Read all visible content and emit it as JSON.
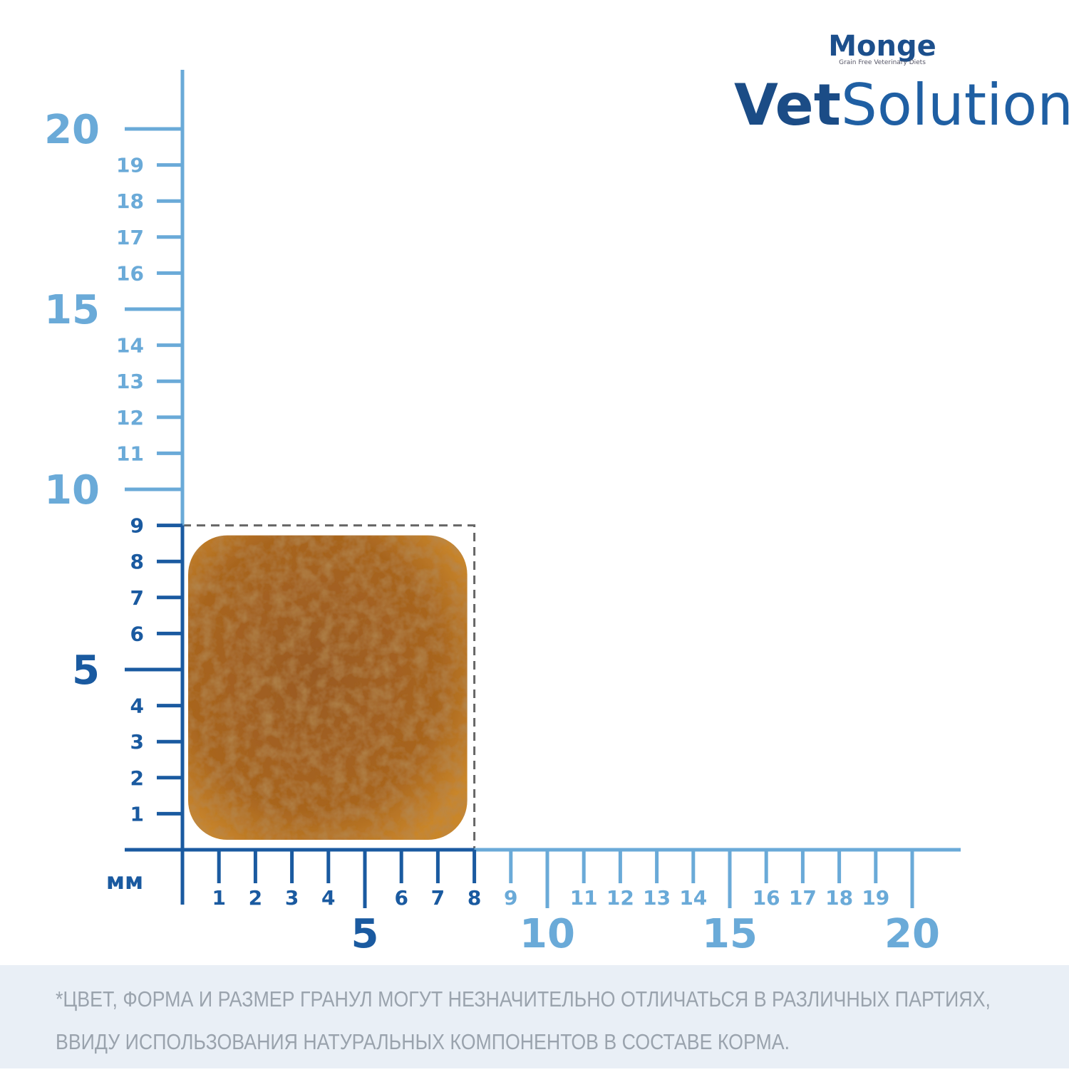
{
  "brand": {
    "name": "Monge",
    "tagline": "Grain Free Veterinary Diets",
    "product": [
      "Vet",
      "Solution"
    ]
  },
  "ruler": {
    "unit": "мм",
    "x_ticks": [
      1,
      2,
      3,
      4,
      5,
      6,
      7,
      8,
      9,
      10,
      11,
      12,
      13,
      14,
      15,
      16,
      17,
      18,
      19,
      20
    ],
    "y_ticks": [
      1,
      2,
      3,
      4,
      5,
      6,
      7,
      8,
      9,
      10,
      11,
      12,
      13,
      14,
      15,
      16,
      17,
      18,
      19,
      20
    ],
    "kibble": {
      "width": 8,
      "height": 9
    }
  },
  "note": {
    "lines": [
      "*ЦВЕТ, ФОРМА И РАЗМЕР ГРАНУЛ МОГУТ НЕЗНАЧИТЕЛЬНО ОТЛИЧАТЬСЯ В РАЗЛИЧНЫХ ПАРТИЯХ,",
      "ВВИДУ ИСПОЛЬЗОВАНИЯ НАТУРАЛЬНЫХ КОМПОНЕНТОВ В СОСТАВЕ КОРМА."
    ]
  }
}
